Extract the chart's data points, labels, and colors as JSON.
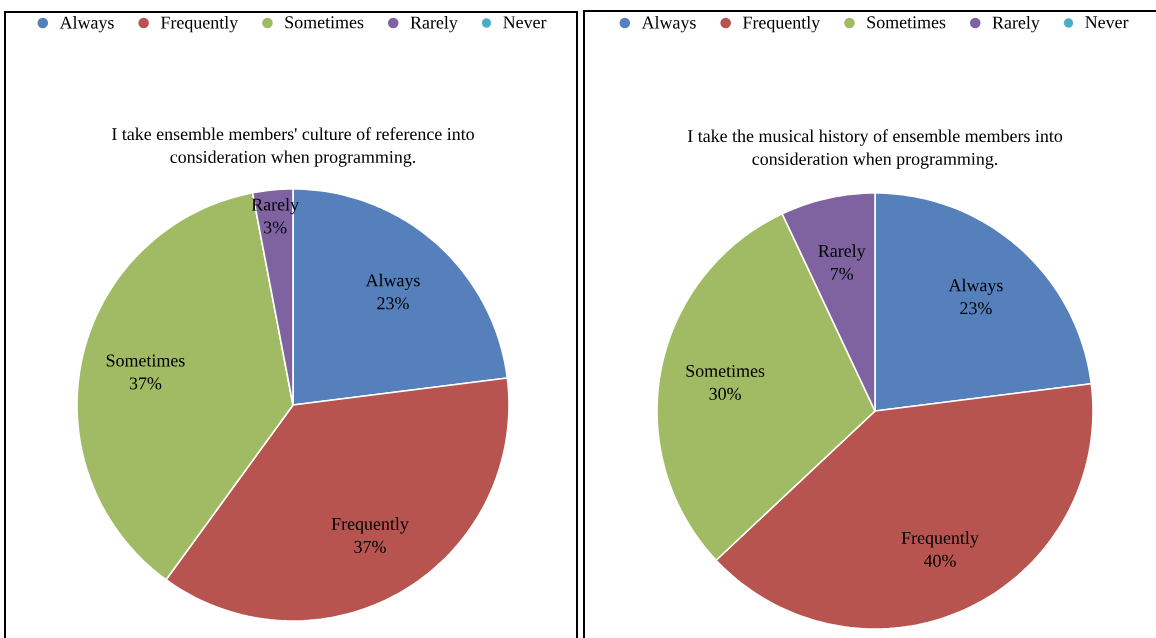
{
  "chart_data": [
    {
      "type": "pie",
      "title": "I take ensemble members' culture of reference into consideration when programming.",
      "categories": [
        "Always",
        "Frequently",
        "Sometimes",
        "Rarely",
        "Never"
      ],
      "values": [
        23,
        37,
        37,
        3,
        0
      ],
      "colors": [
        "#5580bb",
        "#b85450",
        "#a0bb63",
        "#7f63a1",
        "#4bacc6"
      ],
      "value_labels": [
        "23%",
        "37%",
        "37%",
        "3%",
        null
      ],
      "legend": "top"
    },
    {
      "type": "pie",
      "title": "I take the musical history of ensemble members into consideration when programming.",
      "categories": [
        "Always",
        "Frequently",
        "Sometimes",
        "Rarely",
        "Never"
      ],
      "values": [
        23,
        40,
        30,
        7,
        0
      ],
      "colors": [
        "#5580bb",
        "#b85450",
        "#a0bb63",
        "#7f63a1",
        "#4bacc6"
      ],
      "value_labels": [
        "23%",
        "40%",
        "30%",
        "7%",
        null
      ],
      "legend": "top"
    }
  ]
}
